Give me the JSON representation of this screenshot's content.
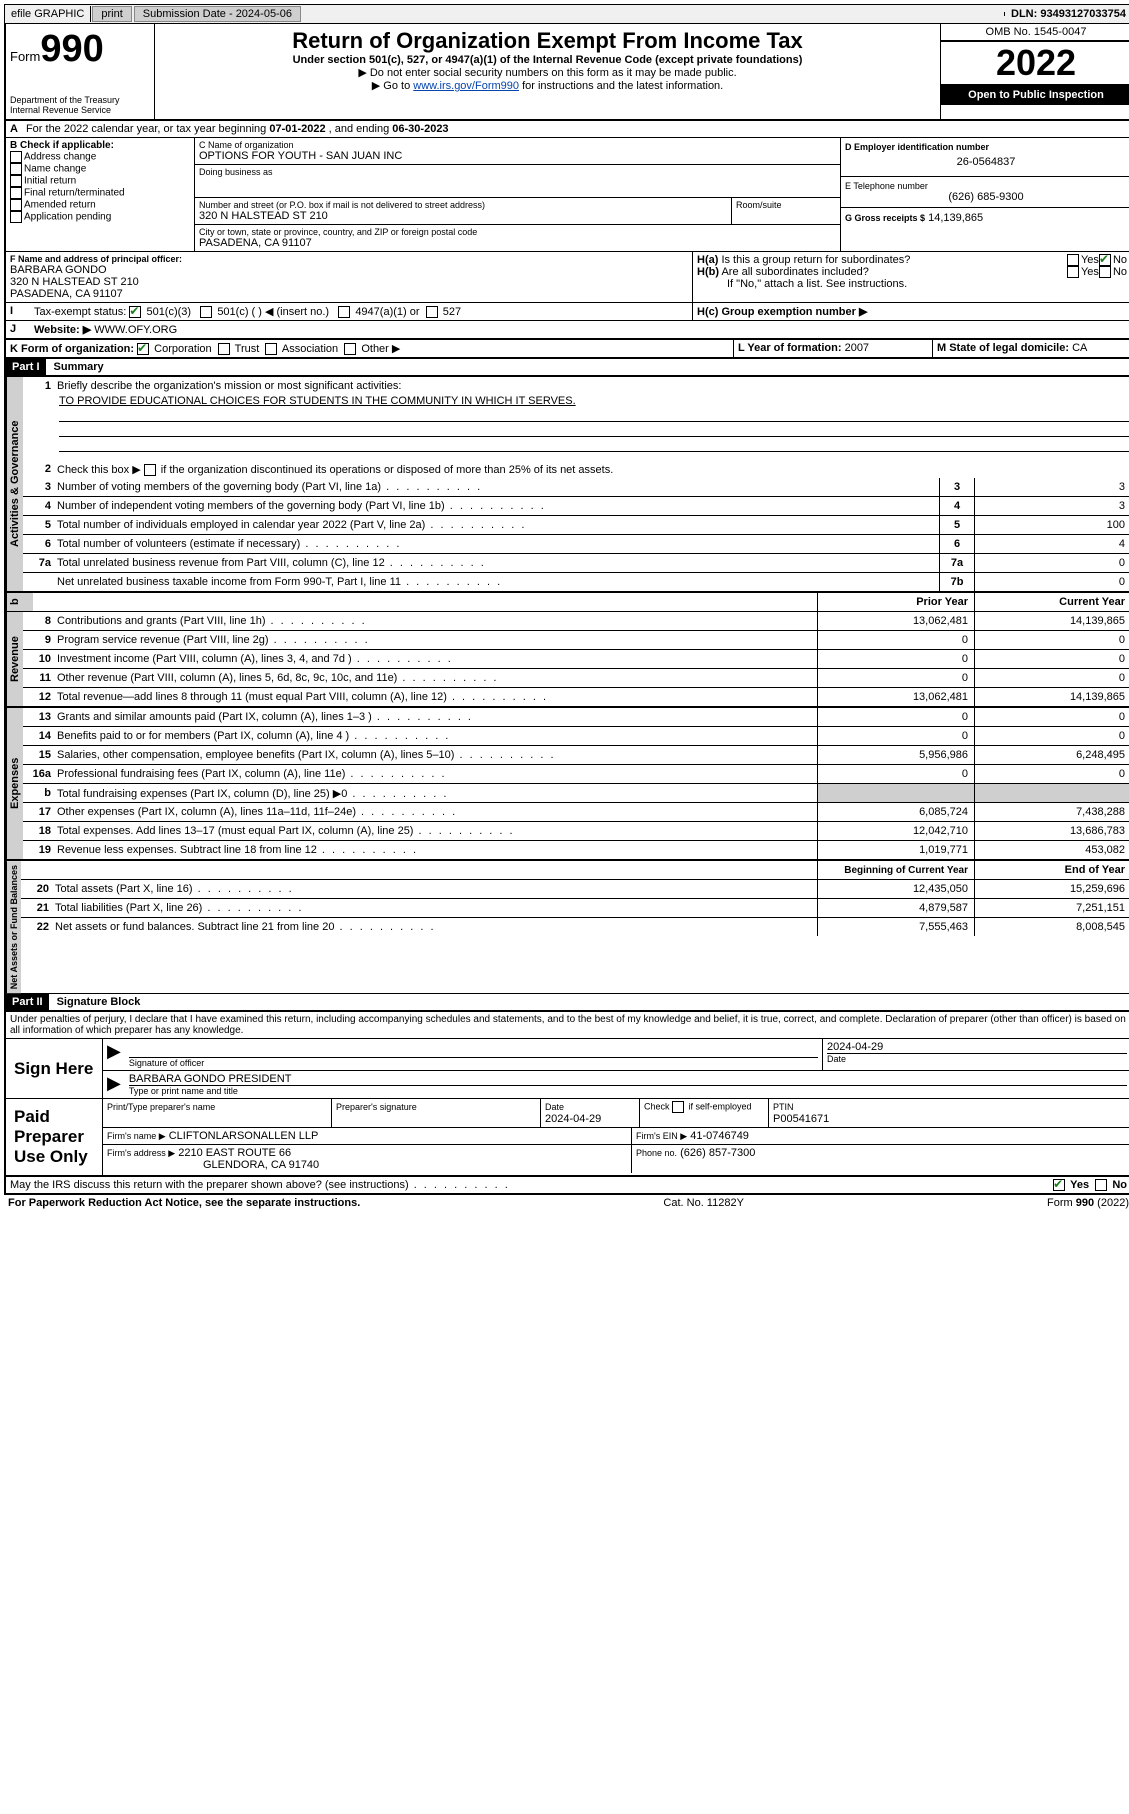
{
  "topbar": {
    "efile": "efile GRAPHIC",
    "print": "print",
    "subdate_lbl": "Submission Date - 2024-05-06",
    "dln": "DLN: 93493127033754"
  },
  "header": {
    "form_word": "Form",
    "form_num": "990",
    "dept": "Department of the Treasury",
    "irs": "Internal Revenue Service",
    "title": "Return of Organization Exempt From Income Tax",
    "sub1": "Under section 501(c), 527, or 4947(a)(1) of the Internal Revenue Code (except private foundations)",
    "sub2": "▶ Do not enter social security numbers on this form as it may be made public.",
    "sub3_pre": "▶ Go to ",
    "sub3_link": "www.irs.gov/Form990",
    "sub3_post": " for instructions and the latest information.",
    "omb": "OMB No. 1545-0047",
    "year": "2022",
    "inspect": "Open to Public Inspection"
  },
  "periodA": {
    "text_pre": "For the 2022 calendar year, or tax year beginning ",
    "begin": "07-01-2022",
    "mid": " , and ending ",
    "end": "06-30-2023"
  },
  "boxB": {
    "hdr": "B Check if applicable:",
    "items": [
      "Address change",
      "Name change",
      "Initial return",
      "Final return/terminated",
      "Amended return",
      "Application pending"
    ]
  },
  "boxC": {
    "name_lbl": "C Name of organization",
    "name": "OPTIONS FOR YOUTH - SAN JUAN INC",
    "dba_lbl": "Doing business as",
    "addr_lbl": "Number and street (or P.O. box if mail is not delivered to street address)",
    "room_lbl": "Room/suite",
    "addr": "320 N HALSTEAD ST 210",
    "city_lbl": "City or town, state or province, country, and ZIP or foreign postal code",
    "city": "PASADENA, CA  91107"
  },
  "boxD": {
    "lbl": "D Employer identification number",
    "val": "26-0564837"
  },
  "boxE": {
    "lbl": "E Telephone number",
    "val": "(626) 685-9300"
  },
  "boxG": {
    "lbl": "G Gross receipts $",
    "val": "14,139,865"
  },
  "boxF": {
    "lbl": "F Name and address of principal officer:",
    "name": "BARBARA GONDO",
    "addr1": "320 N HALSTEAD ST 210",
    "addr2": "PASADENA, CA  91107"
  },
  "boxH": {
    "a_lbl": "H(a)  Is this a group return for subordinates?",
    "b_lbl": "H(b)  Are all subordinates included?",
    "b_note": "If \"No,\" attach a list. See instructions.",
    "c_lbl": "H(c)  Group exemption number ▶",
    "yes": "Yes",
    "no": "No"
  },
  "boxI": {
    "lbl": "Tax-exempt status:",
    "c3": "501(c)(3)",
    "c": "501(c) (  ) ◀ (insert no.)",
    "a1": "4947(a)(1) or",
    "s527": "527"
  },
  "boxJ": {
    "lbl": "Website: ▶",
    "val": "WWW.OFY.ORG"
  },
  "boxK": {
    "lbl": "K Form of organization:",
    "corp": "Corporation",
    "trust": "Trust",
    "assoc": "Association",
    "other": "Other ▶"
  },
  "boxL": {
    "lbl": "L Year of formation:",
    "val": "2007"
  },
  "boxM": {
    "lbl": "M State of legal domicile:",
    "val": "CA"
  },
  "part1": {
    "hdr": "Part I",
    "title": "Summary"
  },
  "gov": {
    "tab": "Activities & Governance",
    "l1": "Briefly describe the organization's mission or most significant activities:",
    "l1_val": "TO PROVIDE EDUCATIONAL CHOICES FOR STUDENTS IN THE COMMUNITY IN WHICH IT SERVES.",
    "l2": "Check this box ▶       if the organization discontinued its operations or disposed of more than 25% of its net assets.",
    "l3": "Number of voting members of the governing body (Part VI, line 1a)",
    "l3v": "3",
    "l4": "Number of independent voting members of the governing body (Part VI, line 1b)",
    "l4v": "3",
    "l5": "Total number of individuals employed in calendar year 2022 (Part V, line 2a)",
    "l5v": "100",
    "l6": "Total number of volunteers (estimate if necessary)",
    "l6v": "4",
    "l7a": "Total unrelated business revenue from Part VIII, column (C), line 12",
    "l7av": "0",
    "l7b": "Net unrelated business taxable income from Form 990-T, Part I, line 11",
    "l7bv": "0"
  },
  "colhdrs": {
    "prior": "Prior Year",
    "curr": "Current Year",
    "begin": "Beginning of Current Year",
    "end": "End of Year"
  },
  "rev": {
    "tab": "Revenue",
    "rows": [
      {
        "n": "8",
        "t": "Contributions and grants (Part VIII, line 1h)",
        "p": "13,062,481",
        "c": "14,139,865"
      },
      {
        "n": "9",
        "t": "Program service revenue (Part VIII, line 2g)",
        "p": "0",
        "c": "0"
      },
      {
        "n": "10",
        "t": "Investment income (Part VIII, column (A), lines 3, 4, and 7d )",
        "p": "0",
        "c": "0"
      },
      {
        "n": "11",
        "t": "Other revenue (Part VIII, column (A), lines 5, 6d, 8c, 9c, 10c, and 11e)",
        "p": "0",
        "c": "0"
      },
      {
        "n": "12",
        "t": "Total revenue—add lines 8 through 11 (must equal Part VIII, column (A), line 12)",
        "p": "13,062,481",
        "c": "14,139,865"
      }
    ]
  },
  "exp": {
    "tab": "Expenses",
    "rows": [
      {
        "n": "13",
        "t": "Grants and similar amounts paid (Part IX, column (A), lines 1–3 )",
        "p": "0",
        "c": "0"
      },
      {
        "n": "14",
        "t": "Benefits paid to or for members (Part IX, column (A), line 4 )",
        "p": "0",
        "c": "0"
      },
      {
        "n": "15",
        "t": "Salaries, other compensation, employee benefits (Part IX, column (A), lines 5–10)",
        "p": "5,956,986",
        "c": "6,248,495"
      },
      {
        "n": "16a",
        "t": "Professional fundraising fees (Part IX, column (A), line 11e)",
        "p": "0",
        "c": "0"
      },
      {
        "n": "b",
        "t": "Total fundraising expenses (Part IX, column (D), line 25) ▶0",
        "p": "",
        "c": "",
        "shade": true
      },
      {
        "n": "17",
        "t": "Other expenses (Part IX, column (A), lines 11a–11d, 11f–24e)",
        "p": "6,085,724",
        "c": "7,438,288"
      },
      {
        "n": "18",
        "t": "Total expenses. Add lines 13–17 (must equal Part IX, column (A), line 25)",
        "p": "12,042,710",
        "c": "13,686,783"
      },
      {
        "n": "19",
        "t": "Revenue less expenses. Subtract line 18 from line 12",
        "p": "1,019,771",
        "c": "453,082"
      }
    ]
  },
  "na": {
    "tab": "Net Assets or Fund Balances",
    "rows": [
      {
        "n": "20",
        "t": "Total assets (Part X, line 16)",
        "p": "12,435,050",
        "c": "15,259,696"
      },
      {
        "n": "21",
        "t": "Total liabilities (Part X, line 26)",
        "p": "4,879,587",
        "c": "7,251,151"
      },
      {
        "n": "22",
        "t": "Net assets or fund balances. Subtract line 21 from line 20",
        "p": "7,555,463",
        "c": "8,008,545"
      }
    ]
  },
  "part2": {
    "hdr": "Part II",
    "title": "Signature Block",
    "decl": "Under penalties of perjury, I declare that I have examined this return, including accompanying schedules and statements, and to the best of my knowledge and belief, it is true, correct, and complete. Declaration of preparer (other than officer) is based on all information of which preparer has any knowledge."
  },
  "sign": {
    "lbl": "Sign Here",
    "sig_lbl": "Signature of officer",
    "date_lbl": "Date",
    "date": "2024-04-29",
    "name": "BARBARA GONDO  PRESIDENT",
    "name_lbl": "Type or print name and title"
  },
  "paid": {
    "lbl": "Paid Preparer Use Only",
    "pt_name_lbl": "Print/Type preparer's name",
    "sig_lbl": "Preparer's signature",
    "date_lbl": "Date",
    "date": "2024-04-29",
    "check_lbl": "Check        if self-employed",
    "ptin_lbl": "PTIN",
    "ptin": "P00541671",
    "firm_lbl": "Firm's name    ▶",
    "firm": "CLIFTONLARSONALLEN LLP",
    "ein_lbl": "Firm's EIN ▶",
    "ein": "41-0746749",
    "addr_lbl": "Firm's address ▶",
    "addr1": "2210 EAST ROUTE 66",
    "addr2": "GLENDORA, CA  91740",
    "phone_lbl": "Phone no.",
    "phone": "(626) 857-7300"
  },
  "discuss": {
    "q": "May the IRS discuss this return with the preparer shown above? (see instructions)",
    "yes": "Yes",
    "no": "No"
  },
  "footer": {
    "left": "For Paperwork Reduction Act Notice, see the separate instructions.",
    "mid": "Cat. No. 11282Y",
    "right": "Form 990 (2022)"
  }
}
